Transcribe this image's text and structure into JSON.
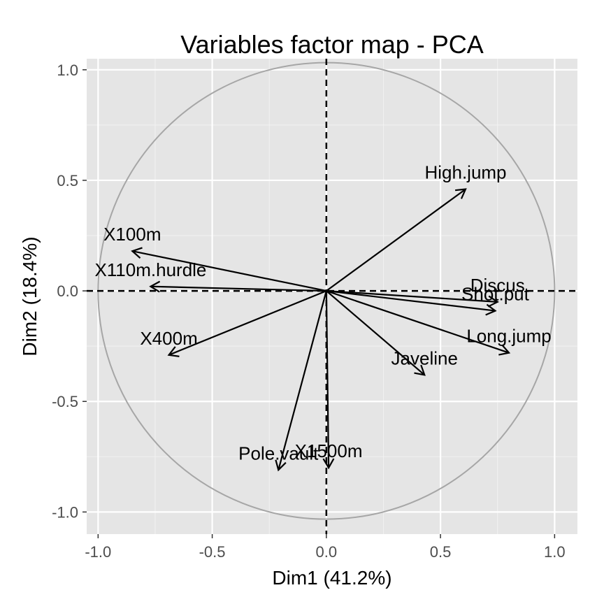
{
  "chart_data": {
    "type": "scatter",
    "title": "Variables factor map - PCA",
    "xlabel": "Dim1 (41.2%)",
    "ylabel": "Dim2 (18.4%)",
    "xlim": [
      -1.05,
      1.1
    ],
    "ylim": [
      -1.1,
      1.05
    ],
    "xticks": [
      -1.0,
      -0.5,
      0.0,
      0.5,
      1.0
    ],
    "xtick_labels": [
      "-1.0",
      "-0.5",
      "0.0",
      "0.5",
      "1.0"
    ],
    "yticks": [
      -1.0,
      -0.5,
      0.0,
      0.5,
      1.0
    ],
    "ytick_labels": [
      "-1.0",
      "-0.5",
      "0.0",
      "0.5",
      "1.0"
    ],
    "grid": true,
    "unit_circle": true,
    "colors": {
      "panel_bg": "#e5e5e5",
      "grid_major": "#ffffff",
      "grid_minor": "#f2f2f2",
      "circle": "#a6a6a6",
      "arrow": "#000000",
      "tick_label": "#4d4d4d"
    },
    "variables": [
      {
        "name": "X100m",
        "x": -0.85,
        "y": 0.18
      },
      {
        "name": "X110m.hurdle",
        "x": -0.77,
        "y": 0.02
      },
      {
        "name": "X400m",
        "x": -0.69,
        "y": -0.29
      },
      {
        "name": "Pole.vault",
        "x": -0.21,
        "y": -0.81
      },
      {
        "name": "X1500m",
        "x": 0.01,
        "y": -0.8
      },
      {
        "name": "Javeline",
        "x": 0.43,
        "y": -0.38
      },
      {
        "name": "Long.jump",
        "x": 0.8,
        "y": -0.28
      },
      {
        "name": "Shot.put",
        "x": 0.74,
        "y": -0.09
      },
      {
        "name": "Discus",
        "x": 0.75,
        "y": -0.05
      },
      {
        "name": "High.jump",
        "x": 0.61,
        "y": 0.46
      }
    ]
  }
}
